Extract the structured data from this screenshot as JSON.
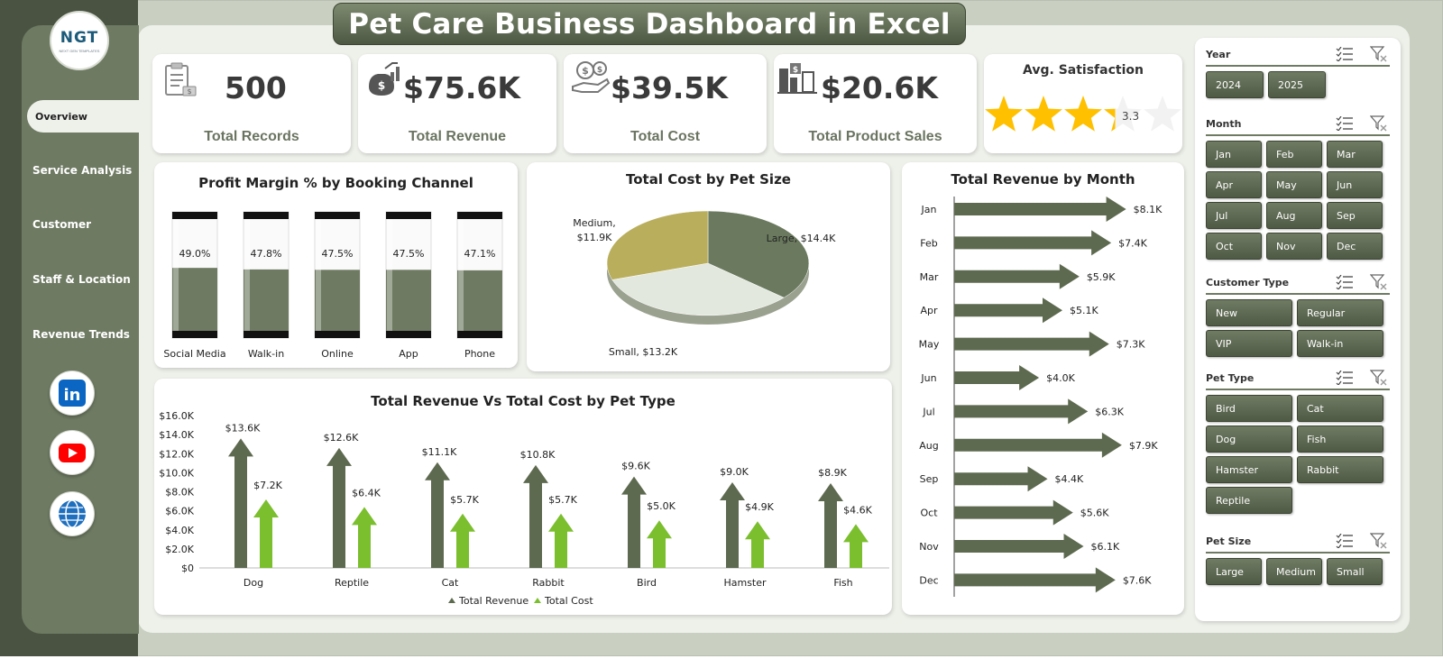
{
  "title": "Pet Care Business Dashboard in Excel",
  "logo": {
    "text": "NGT",
    "subtext": "NEXT GEN TEMPLATES"
  },
  "nav": [
    {
      "label": "Overview",
      "active": true
    },
    {
      "label": "Service Analysis"
    },
    {
      "label": "Customer"
    },
    {
      "label": "Staff & Location"
    },
    {
      "label": "Revenue Trends"
    }
  ],
  "social": [
    {
      "icon": "linkedin-icon",
      "color": "#0a66c2",
      "text": "in"
    },
    {
      "icon": "youtube-icon",
      "color": "#ff0000"
    },
    {
      "icon": "globe-icon",
      "color": "#1f6fbf"
    }
  ],
  "kpis": [
    {
      "value": "500",
      "label": "Total Records",
      "icon": "clipboard-icon"
    },
    {
      "value": "$75.6K",
      "label": "Total Revenue",
      "icon": "revenue-growth-icon"
    },
    {
      "value": "$39.5K",
      "label": "Total Cost",
      "icon": "money-hand-icon"
    },
    {
      "value": "$20.6K",
      "label": "Total Product Sales",
      "icon": "product-sales-icon"
    }
  ],
  "satisfaction": {
    "label": "Avg. Satisfaction",
    "value": 3.3,
    "value_text": "3.3",
    "max": 5,
    "star_color": "#ffc000"
  },
  "profit_margin": {
    "title": "Profit Margin % by Booking Channel",
    "chart_data": {
      "type": "bar",
      "categories": [
        "Social Media",
        "Walk-in",
        "Online",
        "App",
        "Phone"
      ],
      "values": [
        49.0,
        47.8,
        47.5,
        47.5,
        47.1
      ],
      "labels": [
        "49.0%",
        "47.8%",
        "47.5%",
        "47.5%",
        "47.1%"
      ],
      "ylim": [
        0,
        100
      ]
    }
  },
  "cost_by_size": {
    "title": "Total Cost by Pet Size",
    "chart_data": {
      "type": "pie",
      "categories": [
        "Large",
        "Small",
        "Medium"
      ],
      "values": [
        14.4,
        13.2,
        11.9
      ],
      "labels": [
        "Large, $14.4K",
        "Small, $13.2K",
        "Medium,",
        "$11.9K"
      ],
      "colors": [
        "#6b7a5e",
        "#e3e8df",
        "#b9ae5c"
      ]
    }
  },
  "revenue_by_month": {
    "title": "Total Revenue by Month",
    "chart_data": {
      "type": "bar",
      "orientation": "horizontal",
      "categories": [
        "Jan",
        "Feb",
        "Mar",
        "Apr",
        "May",
        "Jun",
        "Jul",
        "Aug",
        "Sep",
        "Oct",
        "Nov",
        "Dec"
      ],
      "values": [
        8.1,
        7.4,
        5.9,
        5.1,
        7.3,
        4.0,
        6.3,
        7.9,
        4.4,
        5.6,
        6.1,
        7.6
      ],
      "labels": [
        "$8.1K",
        "$7.4K",
        "$5.9K",
        "$5.1K",
        "$7.3K",
        "$4.0K",
        "$6.3K",
        "$7.9K",
        "$4.4K",
        "$5.6K",
        "$6.1K",
        "$7.6K"
      ],
      "xlim": [
        0,
        8.5
      ]
    }
  },
  "rev_vs_cost": {
    "title": "Total Revenue Vs Total Cost by Pet Type",
    "chart_data": {
      "type": "bar",
      "categories": [
        "Dog",
        "Reptile",
        "Cat",
        "Rabbit",
        "Bird",
        "Hamster",
        "Fish"
      ],
      "series": [
        {
          "name": "Total Revenue",
          "values": [
            13.6,
            12.6,
            11.1,
            10.8,
            9.6,
            9.0,
            8.9
          ],
          "labels": [
            "$13.6K",
            "$12.6K",
            "$11.1K",
            "$10.8K",
            "$9.6K",
            "$9.0K",
            "$8.9K"
          ],
          "color": "#5d6a50"
        },
        {
          "name": "Total Cost",
          "values": [
            7.2,
            6.4,
            5.7,
            5.7,
            5.0,
            4.9,
            4.6
          ],
          "labels": [
            "$7.2K",
            "$6.4K",
            "$5.7K",
            "$5.7K",
            "$5.0K",
            "$4.9K",
            "$4.6K"
          ],
          "color": "#7bbf2f"
        }
      ],
      "y_ticks": [
        "$0",
        "$2.0K",
        "$4.0K",
        "$6.0K",
        "$8.0K",
        "$10.0K",
        "$12.0K",
        "$14.0K",
        "$16.0K"
      ],
      "ylim": [
        0,
        16
      ],
      "legend": "bottom"
    }
  },
  "slicers": [
    {
      "title": "Year",
      "items": [
        "2024",
        "2025"
      ]
    },
    {
      "title": "Month",
      "items": [
        "Jan",
        "Feb",
        "Mar",
        "Apr",
        "May",
        "Jun",
        "Jul",
        "Aug",
        "Sep",
        "Oct",
        "Nov",
        "Dec"
      ]
    },
    {
      "title": "Customer Type",
      "items": [
        "New",
        "Regular",
        "VIP",
        "Walk-in"
      ]
    },
    {
      "title": "Pet Type",
      "items": [
        "Bird",
        "Cat",
        "Dog",
        "Fish",
        "Hamster",
        "Rabbit",
        "Reptile"
      ]
    },
    {
      "title": "Pet Size",
      "items": [
        "Large",
        "Medium",
        "Small"
      ]
    }
  ]
}
